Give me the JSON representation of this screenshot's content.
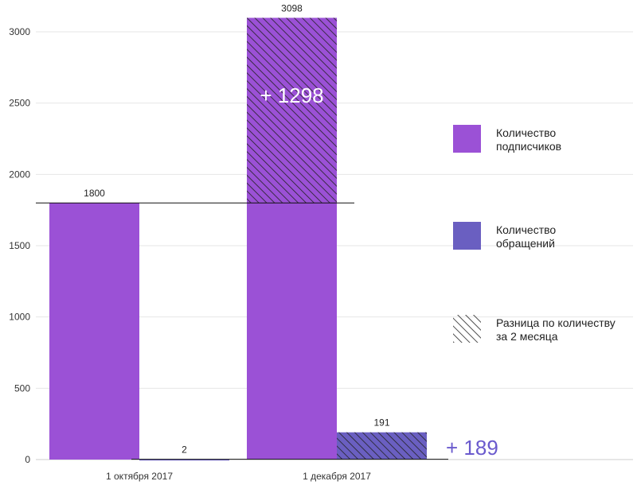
{
  "chart_data": {
    "type": "bar",
    "categories": [
      "1 октября 2017",
      "1 декабря 2017"
    ],
    "series": [
      {
        "name": "Количество подписчиков",
        "values": [
          1800,
          3098
        ],
        "color": "#9b51d6"
      },
      {
        "name": "Количество обращений",
        "values": [
          2,
          191
        ],
        "color": "#6a5fc1"
      }
    ],
    "ylim": [
      0,
      3000
    ],
    "yticks": [
      0,
      500,
      1000,
      1500,
      2000,
      2500,
      3000
    ],
    "grid": true,
    "legend_position": "right",
    "legend": [
      {
        "label_line1": "Количество",
        "label_line2": "подписчиков",
        "kind": "solid",
        "color": "#9b51d6"
      },
      {
        "label_line1": "Количество",
        "label_line2": "обращений",
        "kind": "solid",
        "color": "#6a5fc1"
      },
      {
        "label_line1": "Разница по количеству",
        "label_line2": "за 2 месяца",
        "kind": "hatch",
        "color": "#222222"
      }
    ],
    "annotations": {
      "subscribers_diff": "+ 1298",
      "requests_diff": "+ 189"
    }
  }
}
